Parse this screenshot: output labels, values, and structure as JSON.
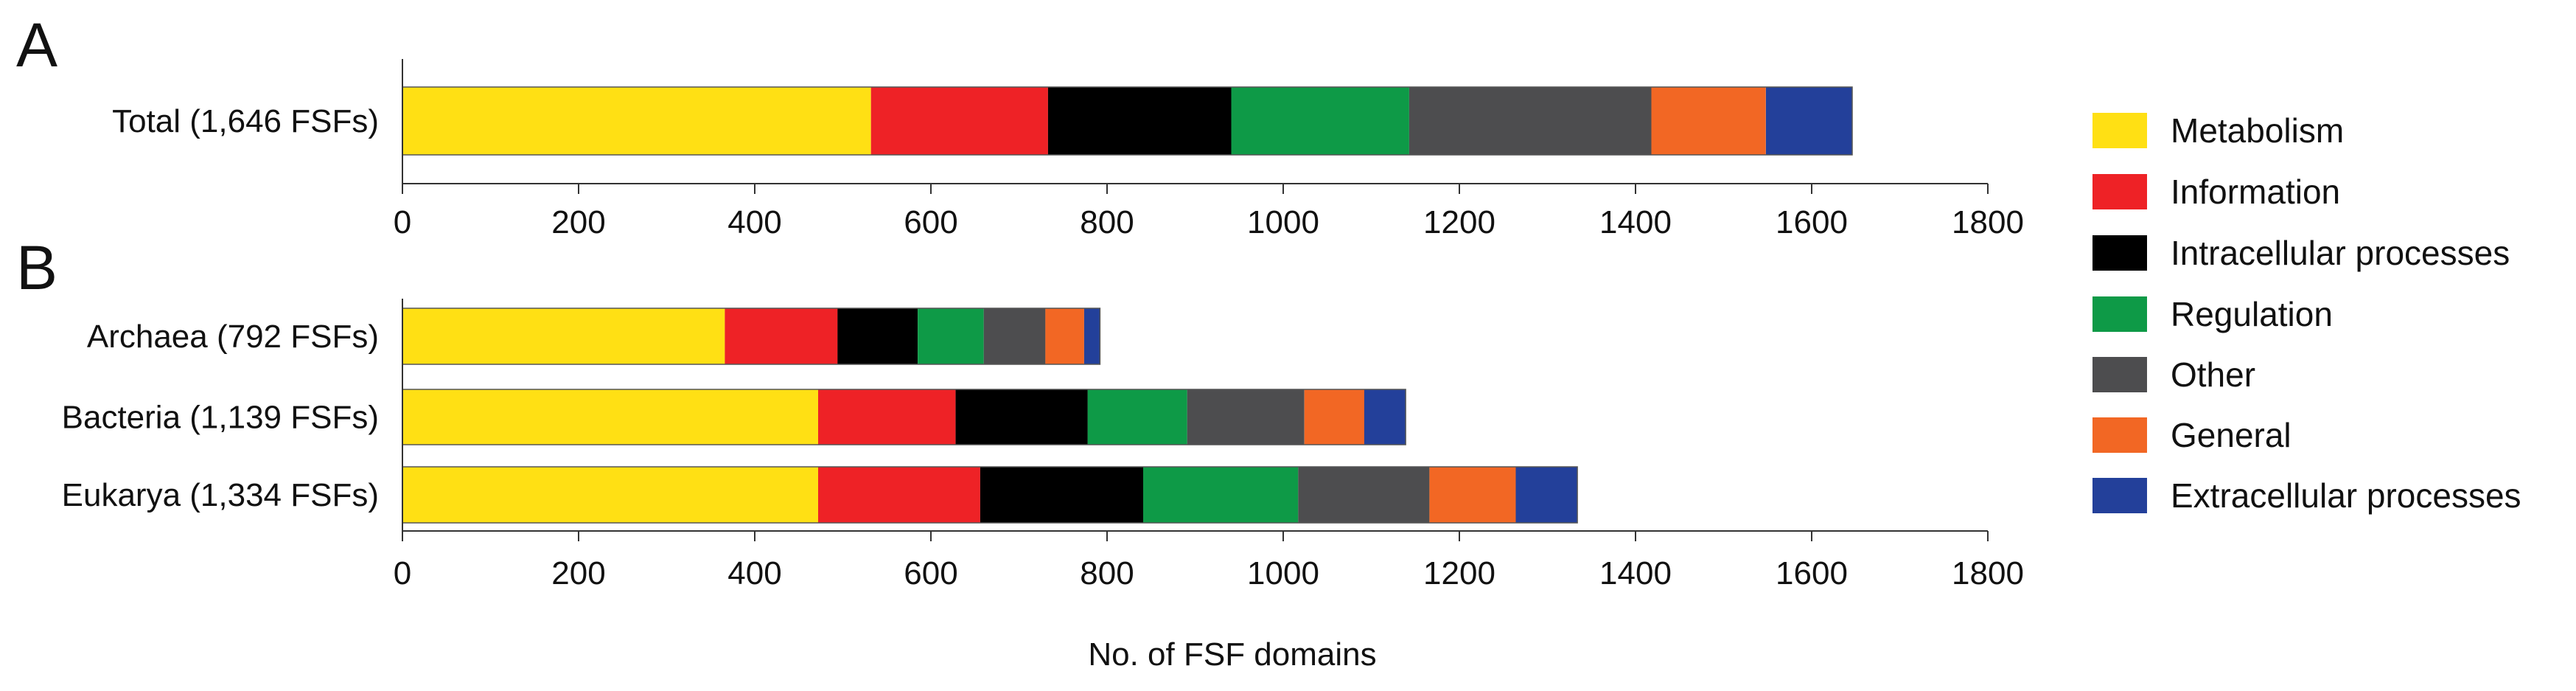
{
  "chart_data": [
    {
      "type": "bar",
      "orientation": "horizontal",
      "stacked": true,
      "panel": "A",
      "categories": [
        "Total (1,646 FSFs)"
      ],
      "series": [
        {
          "name": "Metabolism",
          "color": "#FFE014",
          "values": [
            532
          ]
        },
        {
          "name": "Information",
          "color": "#EE2226",
          "values": [
            201
          ]
        },
        {
          "name": "Intracellular processes",
          "color": "#000000",
          "values": [
            208
          ]
        },
        {
          "name": "Regulation",
          "color": "#0E9A47",
          "values": [
            202
          ]
        },
        {
          "name": "Other",
          "color": "#4D4D4F",
          "values": [
            275
          ]
        },
        {
          "name": "General",
          "color": "#F26724",
          "values": [
            130
          ]
        },
        {
          "name": "Extracellular processes",
          "color": "#23409A",
          "values": [
            98
          ]
        }
      ],
      "xlim": [
        0,
        1800
      ],
      "xticks": [
        0,
        200,
        400,
        600,
        800,
        1000,
        1200,
        1400,
        1600,
        1800
      ],
      "grid": false
    },
    {
      "type": "bar",
      "orientation": "horizontal",
      "stacked": true,
      "panel": "B",
      "categories": [
        "Archaea (792 FSFs)",
        "Bacteria (1,139 FSFs)",
        "Eukarya (1,334 FSFs)"
      ],
      "series": [
        {
          "name": "Metabolism",
          "color": "#FFE014",
          "values": [
            366,
            472,
            472
          ]
        },
        {
          "name": "Information",
          "color": "#EE2226",
          "values": [
            128,
            156,
            184
          ]
        },
        {
          "name": "Intracellular processes",
          "color": "#000000",
          "values": [
            91,
            150,
            185
          ]
        },
        {
          "name": "Regulation",
          "color": "#0E9A47",
          "values": [
            75,
            113,
            176
          ]
        },
        {
          "name": "Other",
          "color": "#4D4D4F",
          "values": [
            70,
            133,
            149
          ]
        },
        {
          "name": "General",
          "color": "#F26724",
          "values": [
            44,
            68,
            98
          ]
        },
        {
          "name": "Extracellular processes",
          "color": "#23409A",
          "values": [
            18,
            47,
            70
          ]
        }
      ],
      "xlim": [
        0,
        1800
      ],
      "xticks": [
        0,
        200,
        400,
        600,
        800,
        1000,
        1200,
        1400,
        1600,
        1800
      ],
      "xlabel": "No. of FSF domains",
      "grid": false
    }
  ],
  "legend": {
    "placement": "right",
    "items": [
      {
        "label": "Metabolism",
        "color": "#FFE014"
      },
      {
        "label": "Information",
        "color": "#EE2226"
      },
      {
        "label": "Intracellular processes",
        "color": "#000000"
      },
      {
        "label": "Regulation",
        "color": "#0E9A47"
      },
      {
        "label": "Other",
        "color": "#4D4D4F"
      },
      {
        "label": "General",
        "color": "#F26724"
      },
      {
        "label": "Extracellular processes",
        "color": "#23409A"
      }
    ]
  }
}
